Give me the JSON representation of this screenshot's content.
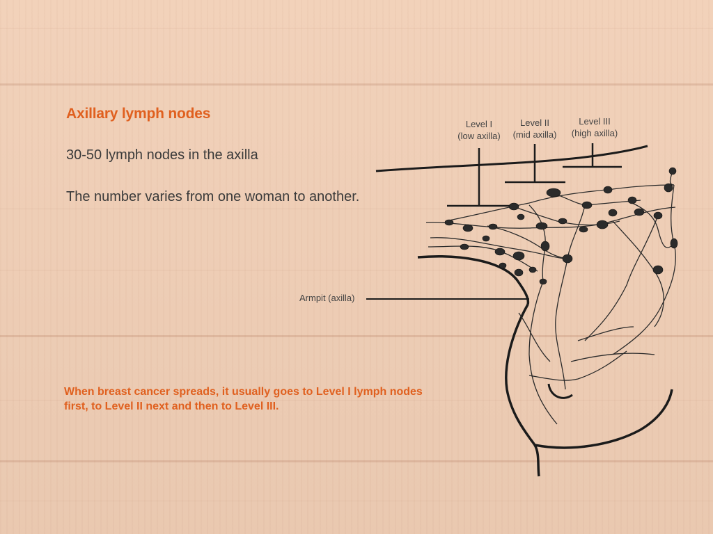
{
  "title": "Axillary lymph nodes",
  "line1": "30-50 lymph nodes in the axilla",
  "line2": "The number varies from one woman to another.",
  "note": "When breast cancer spreads, it usually goes to Level I lymph nodes first, to Level II next and then to Level III.",
  "levels": [
    {
      "name": "Level I",
      "desc": "(low axilla)"
    },
    {
      "name": "Level II",
      "desc": "(mid axilla)"
    },
    {
      "name": "Level III",
      "desc": "(high axilla)"
    }
  ],
  "armpit_label": "Armpit (axilla)",
  "colors": {
    "accent": "#e0601f",
    "text": "#3a3a3a",
    "background": "#f1cfb6"
  }
}
